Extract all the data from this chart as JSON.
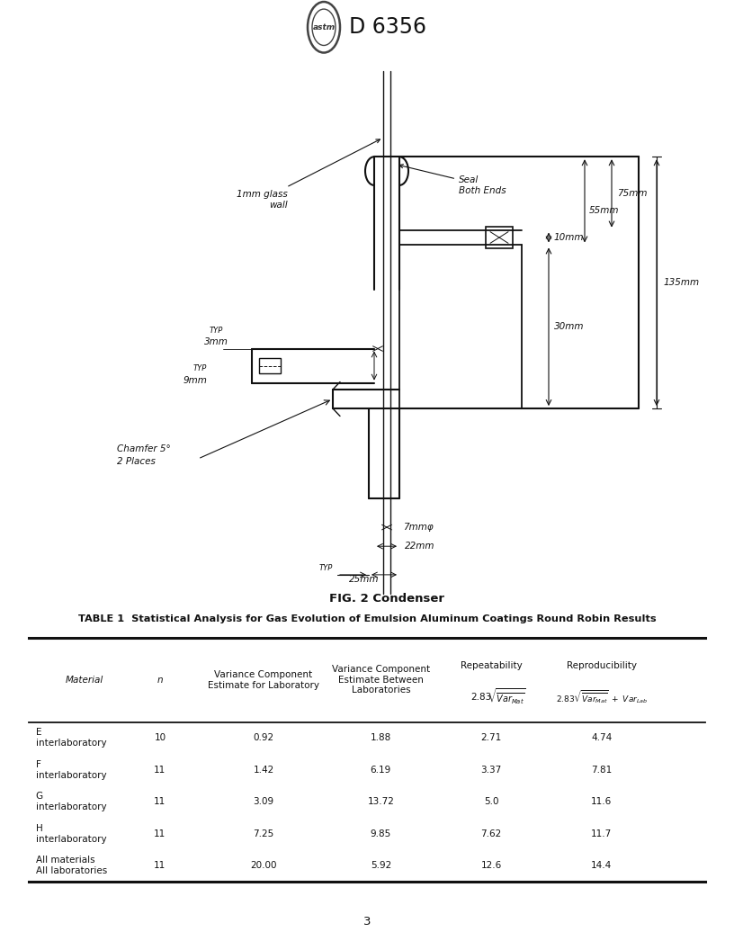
{
  "title": "D 6356",
  "fig_caption": "FIG. 2 Condenser",
  "table_title": "TABLE 1  Statistical Analysis for Gas Evolution of Emulsion Aluminum Coatings Round Robin Results",
  "rows": [
    [
      "E\ninterlaboratory",
      "10",
      "0.92",
      "1.88",
      "2.71",
      "4.74"
    ],
    [
      "F\ninterlaboratory",
      "11",
      "1.42",
      "6.19",
      "3.37",
      "7.81"
    ],
    [
      "G\ninterlaboratory",
      "11",
      "3.09",
      "13.72",
      "5.0",
      "11.6"
    ],
    [
      "H\ninterlaboratory",
      "11",
      "7.25",
      "9.85",
      "7.62",
      "11.7"
    ],
    [
      "All materials\nAll laboratories",
      "11",
      "20.00",
      "5.92",
      "12.6",
      "14.4"
    ]
  ],
  "page_number": "3",
  "bg": "#ffffff",
  "lc": "#111111",
  "tc": "#111111"
}
